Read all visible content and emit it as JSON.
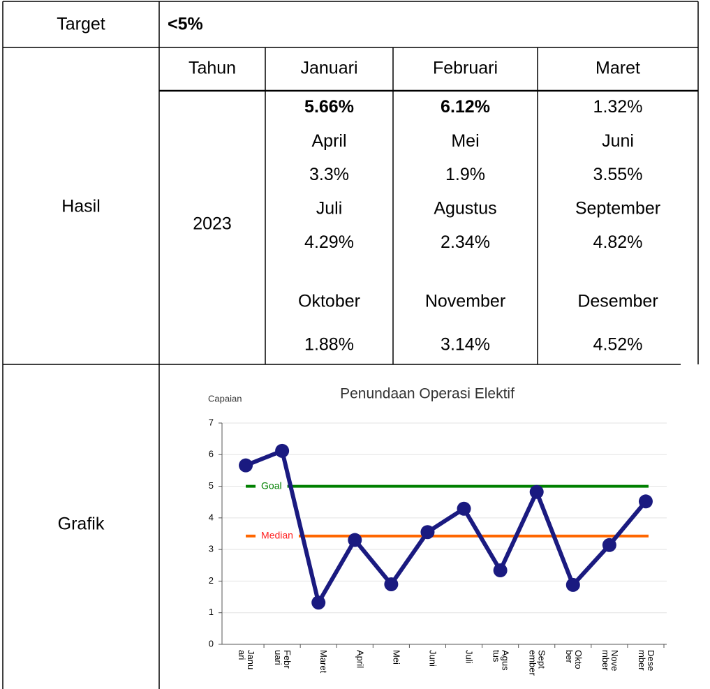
{
  "document": {
    "target_label": "Target",
    "target_value": "<5%",
    "result_label": "Hasil",
    "year_header": "Tahun",
    "year": "2023",
    "graph_label": "Grafik",
    "months": [
      {
        "name": "Januari",
        "value": "5.66%",
        "bold": true
      },
      {
        "name": "Februari",
        "value": "6.12%",
        "bold": true
      },
      {
        "name": "Maret",
        "value": "1.32%",
        "bold": false
      },
      {
        "name": "April",
        "value": "3.3%",
        "bold": false
      },
      {
        "name": "Mei",
        "value": "1.9%",
        "bold": false
      },
      {
        "name": "Juni",
        "value": "3.55%",
        "bold": false
      },
      {
        "name": "Juli",
        "value": "4.29%",
        "bold": false
      },
      {
        "name": "Agustus",
        "value": "2.34%",
        "bold": false
      },
      {
        "name": "September",
        "value": "4.82%",
        "bold": false
      },
      {
        "name": "Oktober",
        "value": "1.88%",
        "bold": false
      },
      {
        "name": "November",
        "value": "3.14%",
        "bold": false
      },
      {
        "name": "Desember",
        "value": "4.52%",
        "bold": false
      }
    ]
  },
  "chart_data": {
    "type": "line",
    "title": "Penundaan Operasi Elektif",
    "y_label": "Capaian",
    "categories": [
      "Januari",
      "Februari",
      "Maret",
      "April",
      "Mei",
      "Juni",
      "Juli",
      "Agustus",
      "September",
      "Oktober",
      "November",
      "Desember"
    ],
    "series": [
      {
        "name": "Capaian",
        "color": "#1a1a80",
        "values": [
          5.66,
          6.12,
          1.32,
          3.3,
          1.9,
          3.55,
          4.29,
          2.34,
          4.82,
          1.88,
          3.14,
          4.52
        ]
      }
    ],
    "reference_lines": [
      {
        "name": "Goal",
        "value": 5,
        "color": "#008000"
      },
      {
        "name": "Median",
        "value": 3.425,
        "color": "#ff6600",
        "label_color": "#ff2020"
      }
    ],
    "ylim": [
      0,
      7
    ],
    "yticks": [
      0,
      1,
      2,
      3,
      4,
      5,
      6,
      7
    ],
    "grid": true
  }
}
